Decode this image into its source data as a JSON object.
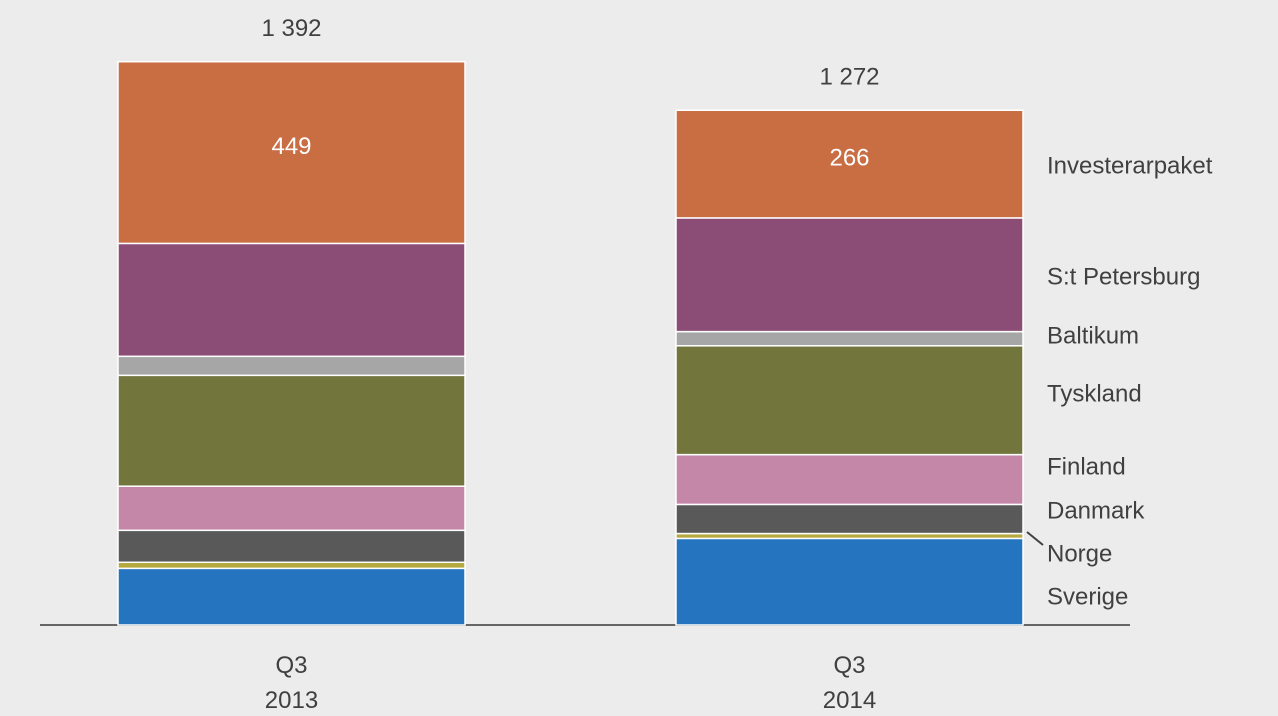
{
  "chart_data": {
    "type": "stacked_bar",
    "categories": [
      "Q3\n2013",
      "Q3\n2014"
    ],
    "series": [
      {
        "name": "Sverige",
        "color": "#2474c0",
        "values": [
          140,
          214
        ]
      },
      {
        "name": "Norge",
        "color": "#b5a83e",
        "values": [
          15,
          12
        ]
      },
      {
        "name": "Danmark",
        "color": "#595959",
        "values": [
          79,
          72
        ]
      },
      {
        "name": "Finland",
        "color": "#c587a8",
        "values": [
          109,
          123
        ]
      },
      {
        "name": "Tyskland",
        "color": "#72763d",
        "values": [
          274,
          269
        ]
      },
      {
        "name": "Baltikum",
        "color": "#a6a6a6",
        "values": [
          47,
          35
        ]
      },
      {
        "name": "S:t Petersburg",
        "color": "#8b4c75",
        "values": [
          279,
          281
        ]
      },
      {
        "name": "Investerarpaket",
        "color": "#c96d43",
        "values": [
          449,
          266
        ],
        "show_labels": true
      }
    ],
    "totals": [
      1392,
      1272
    ],
    "total_labels": [
      "1 392",
      "1 272"
    ],
    "ylim": [
      0,
      1500
    ],
    "yticks": []
  }
}
